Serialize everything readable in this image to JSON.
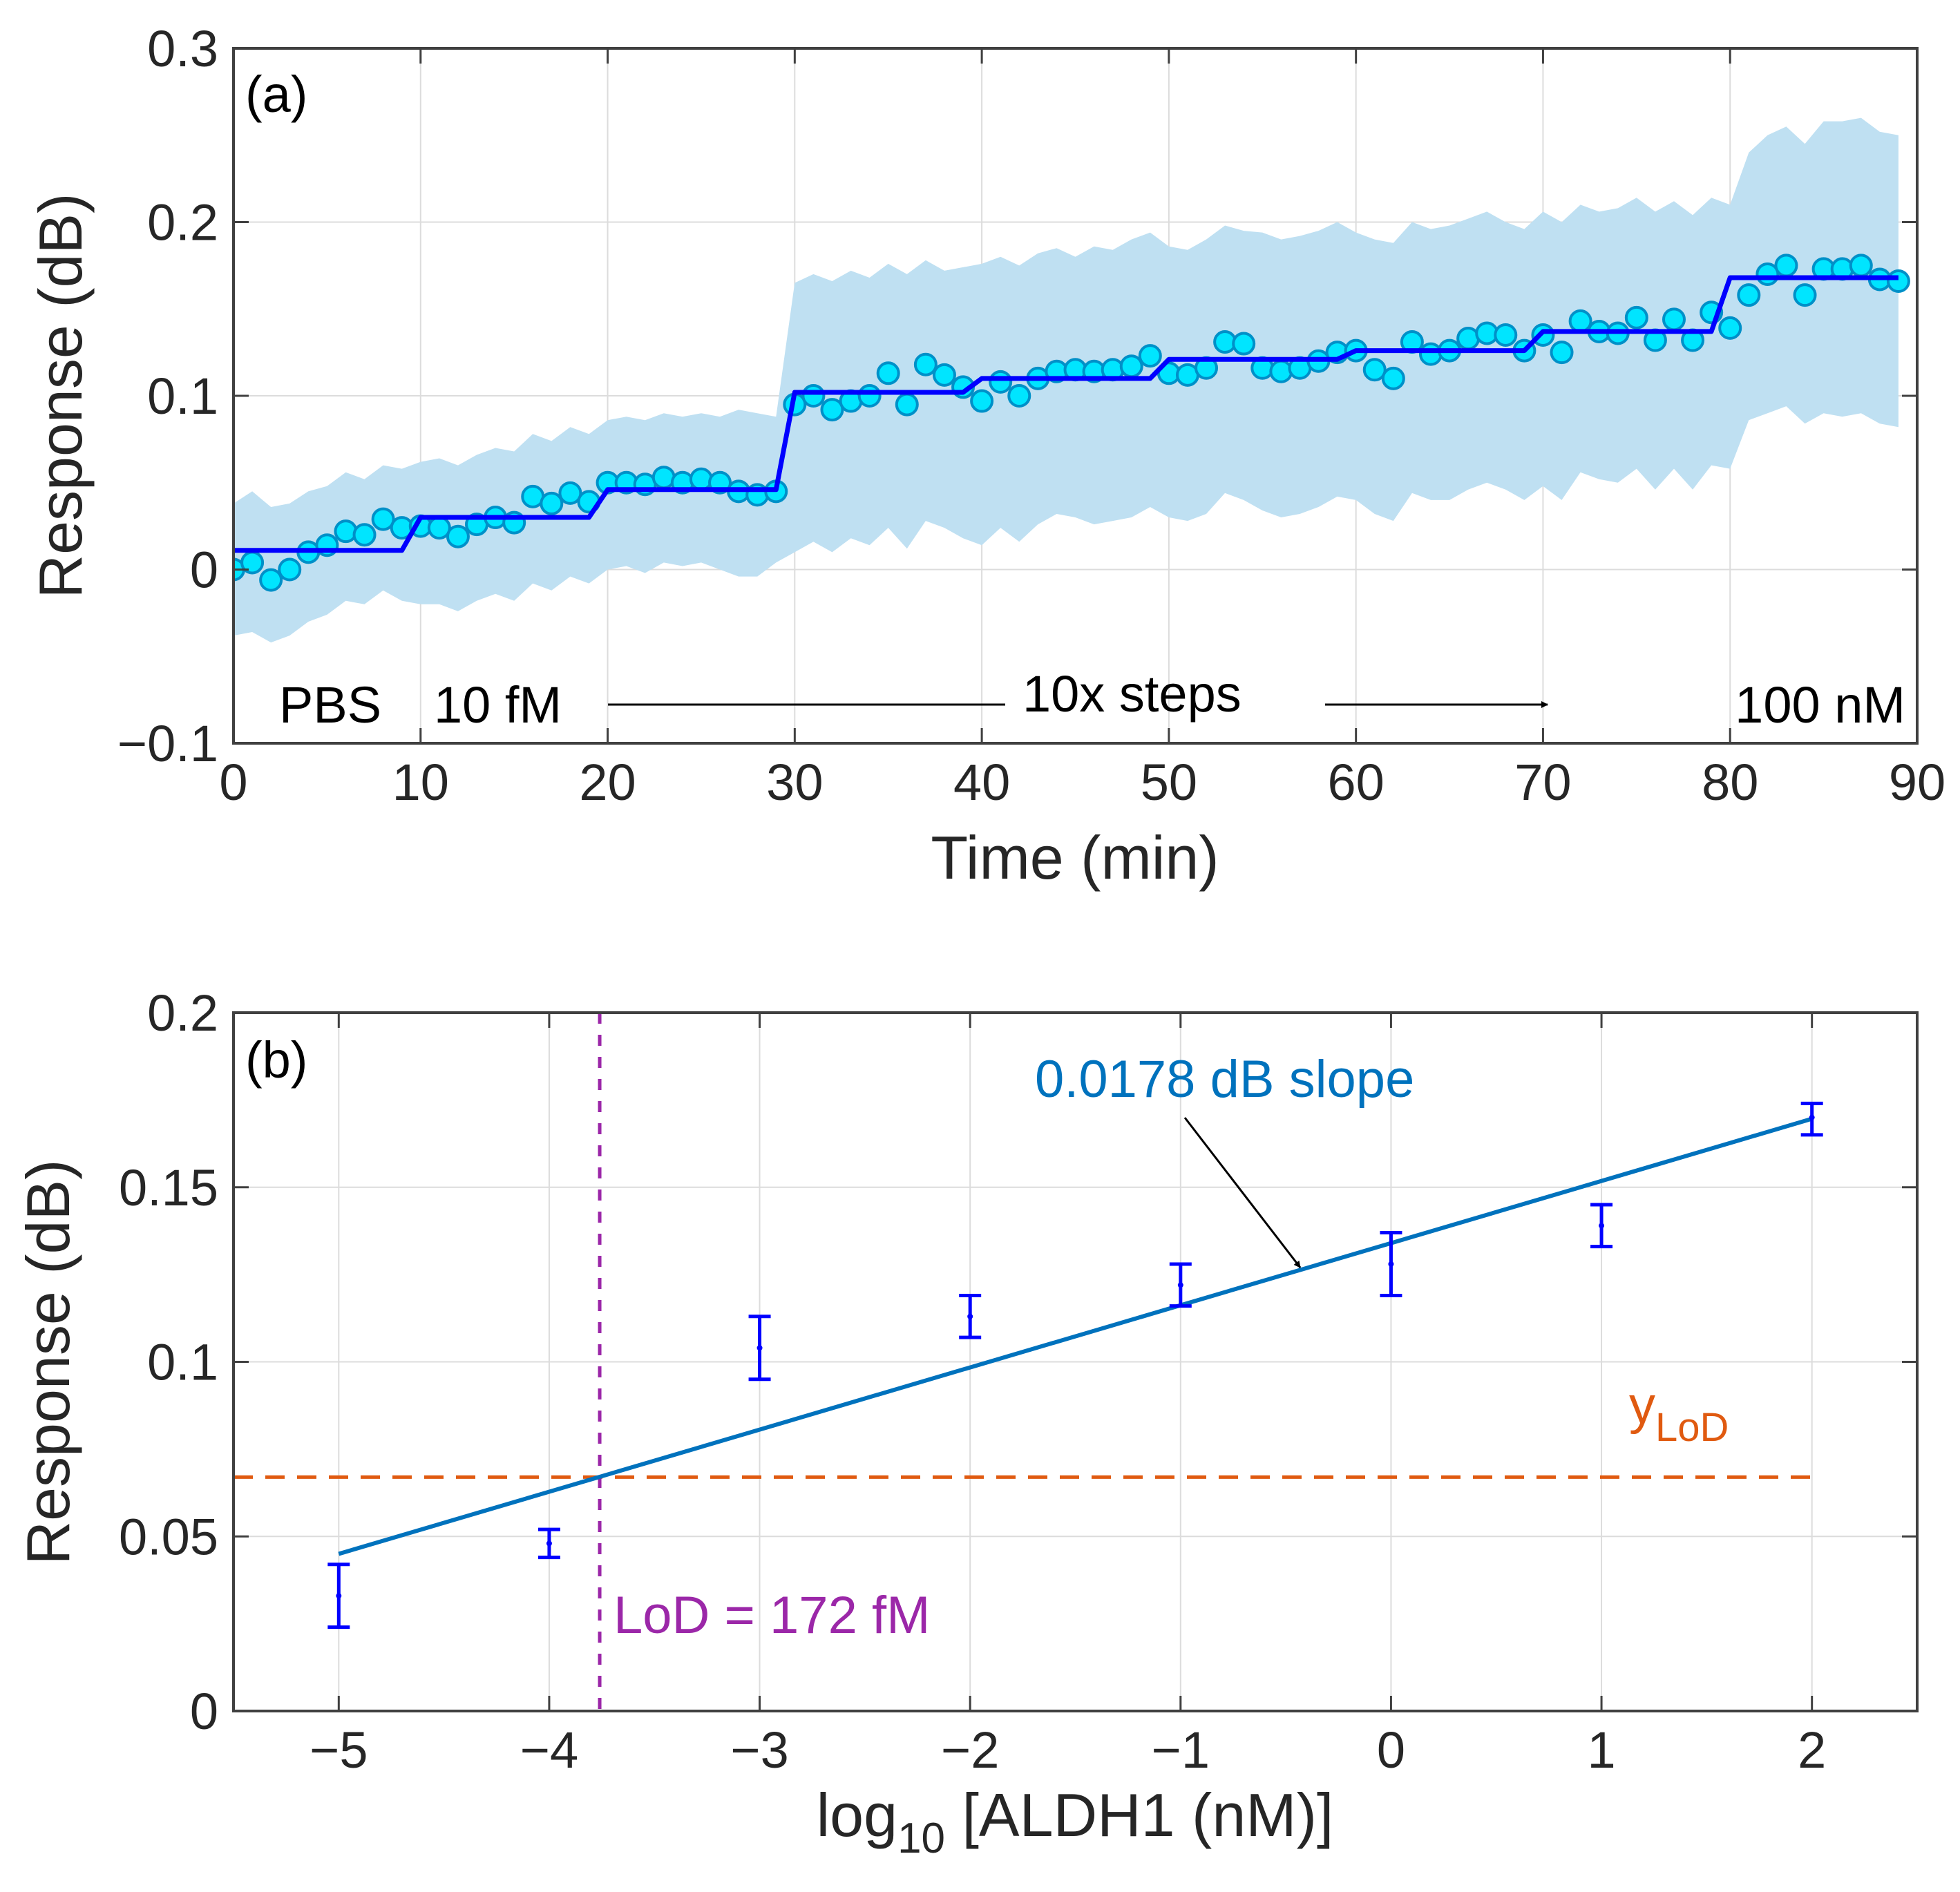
{
  "colors": {
    "band": "#bfe0f2",
    "step_line": "#0000ff",
    "marker_fill": "#00e5ff",
    "marker_edge": "#0090c8",
    "fit_line": "#0072bd",
    "lod_h": "#e05a10",
    "lod_v": "#9b27a8",
    "grid": "#dcdcdc",
    "axis": "#404040"
  },
  "chart_data": [
    {
      "type": "scatter",
      "panel": "(a)",
      "xlabel": "Time (min)",
      "ylabel": "Response (dB)",
      "xlim": [
        0,
        90
      ],
      "ylim": [
        -0.1,
        0.3
      ],
      "xticks": [
        0,
        10,
        20,
        30,
        40,
        50,
        60,
        70,
        80,
        90
      ],
      "xtick_labels": [
        "0",
        "10",
        "20",
        "30",
        "40",
        "50",
        "60",
        "70",
        "80",
        "90"
      ],
      "yticks": [
        -0.1,
        0,
        0.1,
        0.2,
        0.3
      ],
      "ytick_labels": [
        "−0.1",
        "0",
        "0.1",
        "0.2",
        "0.3"
      ],
      "grid": true,
      "annotations": {
        "pbs": "PBS",
        "start": "10 fM",
        "steps": "10x steps",
        "end": "100 nM"
      },
      "points": {
        "x": [
          0,
          1,
          2,
          3,
          4,
          5,
          6,
          7,
          8,
          9,
          10,
          11,
          12,
          13,
          14,
          15,
          16,
          17,
          18,
          19,
          20,
          21,
          22,
          23,
          24,
          25,
          26,
          27,
          28,
          29,
          30,
          31,
          32,
          33,
          34,
          35,
          36,
          37,
          38,
          39,
          40,
          41,
          42,
          43,
          44,
          45,
          46,
          47,
          48,
          49,
          50,
          51,
          52,
          53,
          54,
          55,
          56,
          57,
          58,
          59,
          60,
          61,
          62,
          63,
          64,
          65,
          66,
          67,
          68,
          69,
          70,
          71,
          72,
          73,
          74,
          75,
          76,
          77,
          78,
          79,
          80,
          81,
          82,
          83,
          84,
          85,
          86,
          87,
          88,
          89
        ],
        "y": [
          0,
          0.004,
          -0.006,
          0,
          0.01,
          0.014,
          0.022,
          0.02,
          0.029,
          0.024,
          0.025,
          0.024,
          0.019,
          0.026,
          0.03,
          0.027,
          0.042,
          0.038,
          0.044,
          0.039,
          0.05,
          0.05,
          0.049,
          0.053,
          0.05,
          0.052,
          0.05,
          0.045,
          0.043,
          0.045,
          0.095,
          0.1,
          0.092,
          0.097,
          0.1,
          0.113,
          0.095,
          0.118,
          0.112,
          0.105,
          0.097,
          0.108,
          0.1,
          0.11,
          0.114,
          0.115,
          0.114,
          0.115,
          0.117,
          0.123,
          0.113,
          0.112,
          0.116,
          0.131,
          0.13,
          0.116,
          0.114,
          0.116,
          0.12,
          0.125,
          0.126,
          0.115,
          0.11,
          0.131,
          0.124,
          0.126,
          0.133,
          0.136,
          0.135,
          0.126,
          0.135,
          0.125,
          0.143,
          0.137,
          0.136,
          0.145,
          0.132,
          0.144,
          0.132,
          0.148,
          0.139,
          0.158,
          0.17,
          0.175,
          0.158,
          0.173,
          0.173,
          0.175,
          0.167,
          0.166
        ]
      },
      "step_fit": {
        "x": [
          0,
          9,
          10,
          19,
          20,
          29,
          30,
          39,
          40,
          49,
          50,
          59,
          60,
          69,
          70,
          79,
          80,
          89
        ],
        "y": [
          0.011,
          0.011,
          0.03,
          0.03,
          0.046,
          0.046,
          0.102,
          0.102,
          0.11,
          0.11,
          0.121,
          0.121,
          0.126,
          0.126,
          0.137,
          0.137,
          0.168,
          0.168
        ]
      },
      "band": {
        "x": [
          0,
          1,
          2,
          3,
          4,
          5,
          6,
          7,
          8,
          9,
          10,
          11,
          12,
          13,
          14,
          15,
          16,
          17,
          18,
          19,
          20,
          21,
          22,
          23,
          24,
          25,
          26,
          27,
          28,
          29,
          30,
          31,
          32,
          33,
          34,
          35,
          36,
          37,
          38,
          39,
          40,
          41,
          42,
          43,
          44,
          45,
          46,
          47,
          48,
          49,
          50,
          51,
          52,
          53,
          54,
          55,
          56,
          57,
          58,
          59,
          60,
          61,
          62,
          63,
          64,
          65,
          66,
          67,
          68,
          69,
          70,
          71,
          72,
          73,
          74,
          75,
          76,
          77,
          78,
          79,
          80,
          81,
          82,
          83,
          84,
          85,
          86,
          87,
          88,
          89
        ],
        "upper": [
          0.038,
          0.045,
          0.036,
          0.038,
          0.045,
          0.048,
          0.056,
          0.052,
          0.06,
          0.058,
          0.062,
          0.064,
          0.06,
          0.066,
          0.07,
          0.068,
          0.078,
          0.074,
          0.082,
          0.078,
          0.086,
          0.088,
          0.086,
          0.09,
          0.088,
          0.09,
          0.088,
          0.092,
          0.09,
          0.088,
          0.165,
          0.17,
          0.166,
          0.172,
          0.168,
          0.176,
          0.17,
          0.178,
          0.172,
          0.174,
          0.176,
          0.18,
          0.175,
          0.182,
          0.185,
          0.18,
          0.186,
          0.184,
          0.19,
          0.194,
          0.186,
          0.184,
          0.19,
          0.198,
          0.195,
          0.194,
          0.19,
          0.192,
          0.195,
          0.2,
          0.194,
          0.19,
          0.188,
          0.2,
          0.196,
          0.198,
          0.202,
          0.206,
          0.2,
          0.196,
          0.206,
          0.2,
          0.21,
          0.206,
          0.208,
          0.214,
          0.206,
          0.212,
          0.204,
          0.214,
          0.21,
          0.24,
          0.25,
          0.255,
          0.245,
          0.258,
          0.258,
          0.26,
          0.252,
          0.25
        ],
        "lower": [
          -0.038,
          -0.036,
          -0.042,
          -0.038,
          -0.03,
          -0.026,
          -0.018,
          -0.02,
          -0.012,
          -0.018,
          -0.02,
          -0.02,
          -0.024,
          -0.018,
          -0.014,
          -0.018,
          -0.008,
          -0.012,
          -0.004,
          -0.008,
          0,
          0.002,
          -0.002,
          0.004,
          0.002,
          0.004,
          0,
          -0.004,
          -0.004,
          0.004,
          0.01,
          0.016,
          0.01,
          0.018,
          0.014,
          0.024,
          0.012,
          0.028,
          0.024,
          0.018,
          0.014,
          0.024,
          0.016,
          0.026,
          0.032,
          0.03,
          0.026,
          0.028,
          0.03,
          0.036,
          0.03,
          0.028,
          0.032,
          0.044,
          0.04,
          0.034,
          0.03,
          0.032,
          0.036,
          0.042,
          0.04,
          0.032,
          0.028,
          0.044,
          0.04,
          0.04,
          0.046,
          0.05,
          0.046,
          0.04,
          0.048,
          0.04,
          0.056,
          0.052,
          0.05,
          0.058,
          0.046,
          0.058,
          0.046,
          0.06,
          0.058,
          0.086,
          0.09,
          0.094,
          0.084,
          0.09,
          0.088,
          0.09,
          0.084,
          0.082
        ]
      }
    },
    {
      "type": "scatter",
      "panel": "(b)",
      "xlabel_base": "log",
      "xlabel_sub": "10",
      "xlabel_rest": " [ALDH1 (nM)]",
      "ylabel": "Response (dB)",
      "xlim": [
        -5.5,
        2.5
      ],
      "ylim": [
        0,
        0.2
      ],
      "xticks": [
        -5,
        -4,
        -3,
        -2,
        -1,
        0,
        1,
        2
      ],
      "xtick_labels": [
        "−5",
        "−4",
        "−3",
        "−2",
        "−1",
        "0",
        "1",
        "2"
      ],
      "yticks": [
        0,
        0.05,
        0.1,
        0.15,
        0.2
      ],
      "ytick_labels": [
        "0",
        "0.05",
        "0.1",
        "0.15",
        "0.2"
      ],
      "grid": true,
      "errorbars": {
        "x": [
          -5,
          -4,
          -3,
          -2,
          -1,
          0,
          1,
          2
        ],
        "y": [
          0.033,
          0.048,
          0.104,
          0.113,
          0.122,
          0.128,
          0.139,
          0.17
        ],
        "low": [
          0.024,
          0.044,
          0.095,
          0.107,
          0.116,
          0.119,
          0.133,
          0.165
        ],
        "high": [
          0.042,
          0.052,
          0.113,
          0.119,
          0.128,
          0.137,
          0.145,
          0.174
        ]
      },
      "fit_line": {
        "x": [
          -5,
          2
        ],
        "y": [
          0.045,
          0.1696
        ],
        "slope": 0.0178
      },
      "lod_y": 0.067,
      "lod_x": -3.76,
      "annotations": {
        "slope": "0.0178 dB slope",
        "ylod_base": "y",
        "ylod_sub": "LoD",
        "lod": "LoD = 172 fM"
      }
    }
  ]
}
